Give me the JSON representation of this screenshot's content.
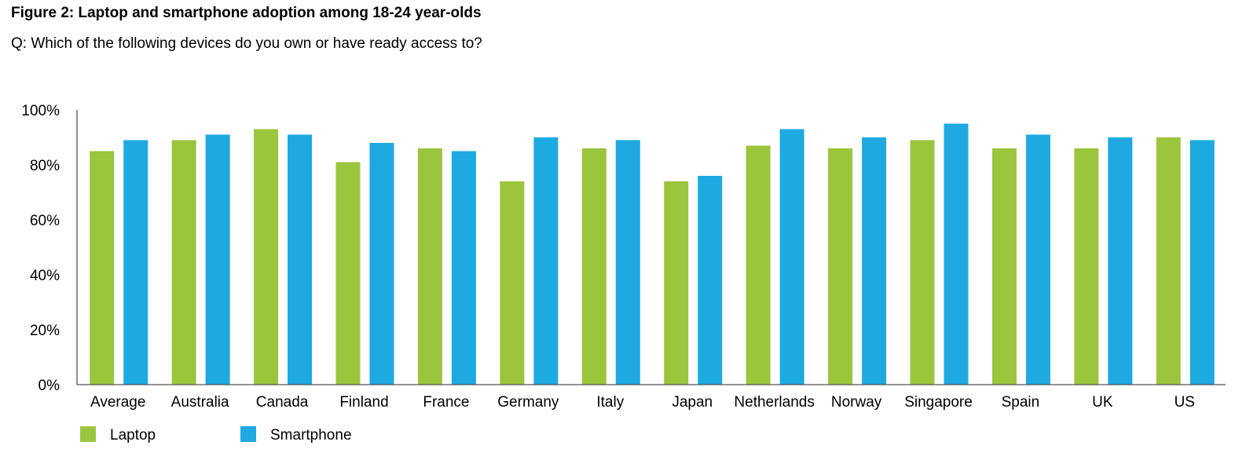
{
  "figure": {
    "title": "Figure 2: Laptop and smartphone adoption among 18-24 year-olds",
    "question": "Q: Which of the following devices do you own or have ready access to?"
  },
  "chart_data": {
    "type": "bar",
    "title": "Figure 2: Laptop and smartphone adoption among 18-24 year-olds",
    "subtitle": "Q: Which of the following devices do you own or have ready access to?",
    "xlabel": "",
    "ylabel": "",
    "ylim": [
      0,
      100
    ],
    "yticks": [
      0,
      20,
      40,
      60,
      80,
      100
    ],
    "ytick_labels": [
      "0%",
      "20%",
      "40%",
      "60%",
      "80%",
      "100%"
    ],
    "grid": false,
    "legend_position": "bottom-left",
    "categories": [
      "Average",
      "Australia",
      "Canada",
      "Finland",
      "France",
      "Germany",
      "Italy",
      "Japan",
      "Netherlands",
      "Norway",
      "Singapore",
      "Spain",
      "UK",
      "US"
    ],
    "series": [
      {
        "name": "Laptop",
        "color": "#9bc53d",
        "values": [
          85,
          89,
          93,
          81,
          86,
          74,
          86,
          74,
          87,
          86,
          89,
          86,
          86,
          90
        ]
      },
      {
        "name": "Smartphone",
        "color": "#1ea9e1",
        "values": [
          89,
          91,
          91,
          88,
          85,
          90,
          89,
          76,
          93,
          90,
          95,
          91,
          90,
          89
        ]
      }
    ]
  }
}
